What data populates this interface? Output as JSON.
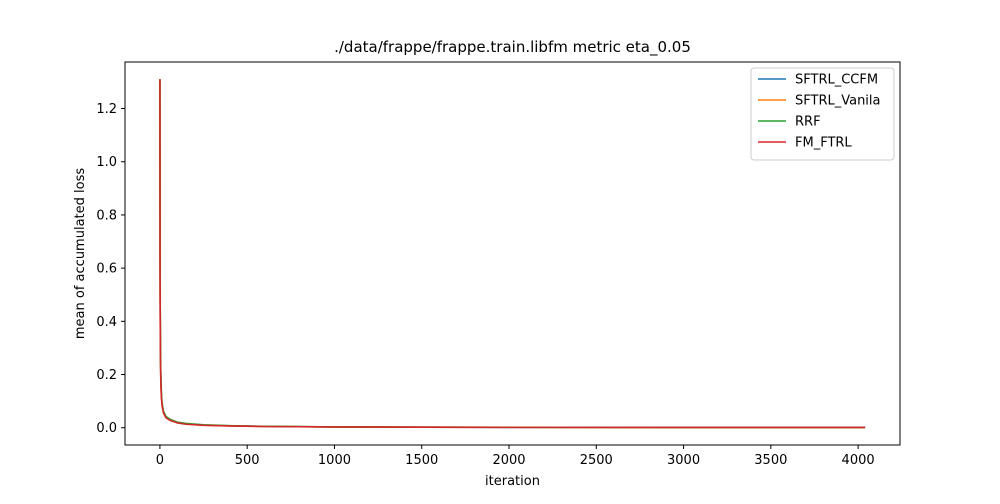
{
  "chart_data": {
    "type": "line",
    "title": "./data/frappe/frappe.train.libfm metric eta_0.05",
    "xlabel": "iteration",
    "ylabel": "mean of accumulated loss",
    "xlim": [
      -200,
      4240
    ],
    "ylim": [
      -0.065,
      1.375
    ],
    "xticks": [
      0,
      500,
      1000,
      1500,
      2000,
      2500,
      3000,
      3500,
      4000
    ],
    "xtick_labels": [
      "0",
      "500",
      "1000",
      "1500",
      "2000",
      "2500",
      "3000",
      "3500",
      "4000"
    ],
    "yticks": [
      0.0,
      0.2,
      0.4,
      0.6,
      0.8,
      1.0,
      1.2
    ],
    "ytick_labels": [
      "0.0",
      "0.2",
      "0.4",
      "0.6",
      "0.8",
      "1.0",
      "1.2"
    ],
    "grid": false,
    "legend_position": "upper right",
    "series": [
      {
        "name": "SFTRL_CCFM",
        "color": "#1f77b4",
        "x": [
          0,
          1,
          2,
          3,
          5,
          8,
          12,
          20,
          35,
          60,
          100,
          150,
          250,
          400,
          600,
          1000,
          1500,
          2000,
          3000,
          4040
        ],
        "y": [
          1.31,
          0.62,
          0.42,
          0.3,
          0.2,
          0.13,
          0.09,
          0.06,
          0.04,
          0.03,
          0.02,
          0.015,
          0.01,
          0.007,
          0.005,
          0.003,
          0.002,
          0.0015,
          0.001,
          0.001
        ]
      },
      {
        "name": "SFTRL_Vanila",
        "color": "#ff7f0e",
        "x": [
          0,
          1,
          2,
          3,
          5,
          8,
          12,
          20,
          35,
          60,
          100,
          150,
          250,
          400,
          600,
          1000,
          1500,
          2000,
          3000,
          4040
        ],
        "y": [
          1.31,
          0.6,
          0.4,
          0.29,
          0.19,
          0.125,
          0.088,
          0.058,
          0.038,
          0.028,
          0.019,
          0.014,
          0.0095,
          0.0068,
          0.0048,
          0.0029,
          0.0019,
          0.0014,
          0.001,
          0.001
        ]
      },
      {
        "name": "RRF",
        "color": "#2ca02c",
        "x": [
          0,
          1,
          2,
          3,
          5,
          8,
          12,
          20,
          35,
          60,
          100,
          150,
          250,
          400,
          600,
          1000,
          1500,
          2000,
          3000,
          4040
        ],
        "y": [
          1.31,
          0.66,
          0.44,
          0.32,
          0.21,
          0.14,
          0.095,
          0.063,
          0.042,
          0.031,
          0.021,
          0.016,
          0.011,
          0.0075,
          0.0052,
          0.0031,
          0.0021,
          0.0016,
          0.0011,
          0.001
        ]
      },
      {
        "name": "FM_FTRL",
        "color": "#d62728",
        "x": [
          0,
          1,
          2,
          3,
          5,
          8,
          12,
          20,
          35,
          60,
          100,
          150,
          250,
          400,
          600,
          1000,
          1500,
          2000,
          3000,
          4040
        ],
        "y": [
          1.31,
          0.58,
          0.38,
          0.27,
          0.18,
          0.12,
          0.085,
          0.056,
          0.037,
          0.027,
          0.018,
          0.013,
          0.009,
          0.0065,
          0.0046,
          0.0028,
          0.0018,
          0.0013,
          0.0009,
          0.0009
        ]
      }
    ]
  }
}
